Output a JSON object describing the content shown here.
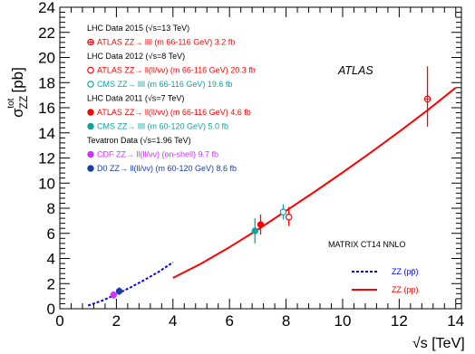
{
  "chart_data": {
    "type": "scatter",
    "title": "",
    "xlabel": "√s [TeV]",
    "ylabel": "σ",
    "ylabel_super": "tot",
    "ylabel_sub": "ZZ",
    "ylabel_unit": "[pb]",
    "xlim": [
      0,
      14.2
    ],
    "ylim": [
      0,
      24
    ],
    "x_ticks": [
      0,
      2,
      4,
      6,
      8,
      10,
      12,
      14
    ],
    "y_ticks": [
      0,
      2,
      4,
      6,
      8,
      10,
      12,
      14,
      16,
      18,
      20,
      22,
      24
    ],
    "x_tick_labels": [
      "0",
      "2",
      "4",
      "6",
      "8",
      "10",
      "12",
      "14"
    ],
    "y_tick_labels": [
      "0",
      "2",
      "4",
      "6",
      "8",
      "10",
      "12",
      "14",
      "16",
      "18",
      "20",
      "22",
      "24"
    ],
    "grid": false,
    "atlas_label": "ATLAS",
    "headers": [
      {
        "text": "LHC Data 2015 (√s=13 TeV)",
        "row": 0
      },
      {
        "text": "LHC Data 2012 (√s=8 TeV)",
        "row": 2
      },
      {
        "text": "LHC Data 2011 (√s=7 TeV)",
        "row": 5
      },
      {
        "text": "Tevatron Data (√s=1.96 TeV)",
        "row": 8
      }
    ],
    "series": [
      {
        "name": "ATLAS ZZ→ llll (m 66-116 GeV) 3.2 fb",
        "color": "#ff0000",
        "marker": "open-cross-circle",
        "row": 1,
        "points": [
          {
            "x": 13.0,
            "y": 16.7,
            "yerr": [
              2.2,
              2.6
            ]
          }
        ]
      },
      {
        "name": "ATLAS ZZ→ ll(ll/νν) (m 66-116 GeV) 20.3 fb",
        "color": "#ff0000",
        "marker": "open-circle",
        "row": 3,
        "points": [
          {
            "x": 8.1,
            "y": 7.3,
            "yerr": [
              0.7,
              0.8
            ]
          }
        ]
      },
      {
        "name": "CMS ZZ→ llll (m 66-116 GeV) 19.6 fb",
        "color": "#0fa3a3",
        "marker": "open-circle",
        "row": 4,
        "points": [
          {
            "x": 7.9,
            "y": 7.7,
            "yerr": [
              0.6,
              0.6
            ]
          }
        ]
      },
      {
        "name": "ATLAS ZZ→ ll(ll/νν) (m 66-116 GeV) 4.6 fb",
        "color": "#ff0000",
        "marker": "filled-circle",
        "row": 6,
        "points": [
          {
            "x": 7.1,
            "y": 6.7,
            "yerr": [
              0.8,
              0.8
            ]
          }
        ]
      },
      {
        "name": "CMS ZZ→ llll (m 60-120 GeV) 5.0 fb",
        "color": "#0fa3a3",
        "marker": "filled-circle",
        "row": 7,
        "points": [
          {
            "x": 6.9,
            "y": 6.2,
            "yerr": [
              1.0,
              1.0
            ]
          }
        ]
      },
      {
        "name": "CDF ZZ→ ll(ll/νν) (on-shell) 9.7 fb",
        "color": "#cc33ff",
        "marker": "filled-circle",
        "row": 9,
        "points": [
          {
            "x": 1.9,
            "y": 1.1,
            "yerr": [
              0.3,
              0.3
            ]
          }
        ]
      },
      {
        "name": "D0 ZZ→ ll(ll/νν) (m 60-120 GeV) 8.6 fb",
        "color": "#1a3fa0",
        "marker": "filled-circle",
        "row": 10,
        "points": [
          {
            "x": 2.1,
            "y": 1.4,
            "yerr": [
              0.3,
              0.3
            ]
          }
        ]
      }
    ],
    "theory": {
      "title": "MATRIX CT14 NNLO",
      "curves": [
        {
          "name": "ZZ (pp̄)",
          "color": "#0000ff",
          "dash": true,
          "points": [
            [
              1.0,
              0.25
            ],
            [
              1.5,
              0.65
            ],
            [
              2.0,
              1.15
            ],
            [
              2.5,
              1.7
            ],
            [
              3.0,
              2.3
            ],
            [
              3.5,
              2.95
            ],
            [
              4.0,
              3.7
            ]
          ]
        },
        {
          "name": "ZZ (pp)",
          "color": "#ff0000",
          "dash": false,
          "points": [
            [
              4.0,
              2.45
            ],
            [
              5.0,
              3.6
            ],
            [
              6.0,
              4.9
            ],
            [
              7.0,
              6.3
            ],
            [
              8.0,
              7.8
            ],
            [
              9.0,
              9.3
            ],
            [
              10.0,
              10.85
            ],
            [
              11.0,
              12.45
            ],
            [
              12.0,
              14.1
            ],
            [
              13.0,
              15.8
            ],
            [
              14.0,
              17.6
            ]
          ]
        }
      ]
    }
  }
}
